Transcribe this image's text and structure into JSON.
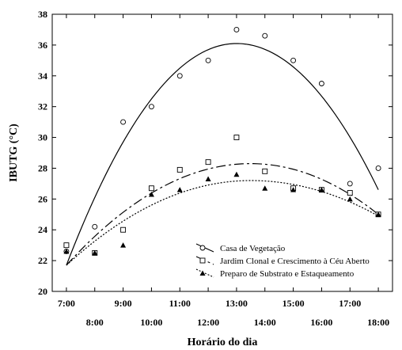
{
  "chart_data": {
    "type": "scatter",
    "title": "",
    "xlabel": "Horário do dia",
    "ylabel": "IBUTG (°C)",
    "xlim": [
      6.5,
      18.5
    ],
    "ylim": [
      20,
      38
    ],
    "xticks": [
      {
        "value": 7,
        "label": "7:00",
        "row": "top"
      },
      {
        "value": 8,
        "label": "8:00",
        "row": "bottom"
      },
      {
        "value": 9,
        "label": "9:00",
        "row": "top"
      },
      {
        "value": 10,
        "label": "10:00",
        "row": "bottom"
      },
      {
        "value": 11,
        "label": "11:00",
        "row": "top"
      },
      {
        "value": 12,
        "label": "12:00",
        "row": "bottom"
      },
      {
        "value": 13,
        "label": "13:00",
        "row": "top"
      },
      {
        "value": 14,
        "label": "14:00",
        "row": "bottom"
      },
      {
        "value": 15,
        "label": "15:00",
        "row": "top"
      },
      {
        "value": 16,
        "label": "16:00",
        "row": "bottom"
      },
      {
        "value": 17,
        "label": "17:00",
        "row": "top"
      },
      {
        "value": 18,
        "label": "18:00",
        "row": "bottom"
      }
    ],
    "yticks": [
      {
        "value": 20,
        "label": "20"
      },
      {
        "value": 22,
        "label": "22"
      },
      {
        "value": 24,
        "label": "24"
      },
      {
        "value": 26,
        "label": "26"
      },
      {
        "value": 28,
        "label": "28"
      },
      {
        "value": 30,
        "label": "30"
      },
      {
        "value": 32,
        "label": "32"
      },
      {
        "value": 34,
        "label": "34"
      },
      {
        "value": 36,
        "label": "36"
      },
      {
        "value": 38,
        "label": "38"
      }
    ],
    "grid": false,
    "legend_position": "bottom-center",
    "series": [
      {
        "name": "Casa de Vegetação",
        "marker": "circle-open",
        "line_style": "solid",
        "points": [
          [
            7,
            22.6
          ],
          [
            8,
            24.2
          ],
          [
            9,
            31.0
          ],
          [
            10,
            32.0
          ],
          [
            11,
            34.0
          ],
          [
            12,
            35.0
          ],
          [
            13,
            37.0
          ],
          [
            14,
            36.6
          ],
          [
            15,
            35.0
          ],
          [
            16,
            33.5
          ],
          [
            17,
            27.0
          ],
          [
            18,
            28.0
          ]
        ],
        "fit": {
          "x_start": 7,
          "x_end": 18,
          "y_start": 21.7,
          "peak_x": 13,
          "peak_y": 36.1,
          "y_end": 26.6
        }
      },
      {
        "name": "Jardim Clonal e Crescimento à Céu Aberto",
        "marker": "square-open",
        "line_style": "dash-dot",
        "points": [
          [
            7,
            23.0
          ],
          [
            8,
            22.5
          ],
          [
            9,
            24.0
          ],
          [
            10,
            26.7
          ],
          [
            11,
            27.9
          ],
          [
            12,
            28.4
          ],
          [
            13,
            30.0
          ],
          [
            14,
            27.8
          ],
          [
            15,
            26.7
          ],
          [
            16,
            26.6
          ],
          [
            17,
            26.4
          ],
          [
            18,
            25.0
          ]
        ],
        "fit": {
          "x_start": 7,
          "x_end": 18,
          "y_start": 21.7,
          "peak_x": 13.5,
          "peak_y": 28.3,
          "y_end": 25.0
        }
      },
      {
        "name": "Preparo de Substrato e Estaqueamento",
        "marker": "triangle-filled",
        "line_style": "dotted",
        "points": [
          [
            7,
            22.6
          ],
          [
            8,
            22.5
          ],
          [
            9,
            23.0
          ],
          [
            10,
            26.3
          ],
          [
            11,
            26.6
          ],
          [
            12,
            27.3
          ],
          [
            13,
            27.6
          ],
          [
            14,
            26.7
          ],
          [
            15,
            26.6
          ],
          [
            16,
            26.6
          ],
          [
            17,
            26.0
          ],
          [
            18,
            25.0
          ]
        ],
        "fit": {
          "x_start": 7,
          "x_end": 18,
          "y_start": 21.7,
          "peak_x": 13.5,
          "peak_y": 27.2,
          "y_end": 24.9
        }
      }
    ]
  }
}
